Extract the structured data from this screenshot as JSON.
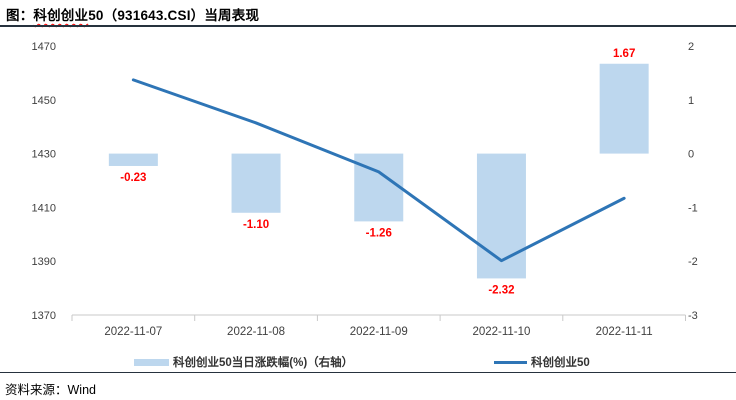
{
  "title": {
    "prefix": "图：",
    "squiggle_part": "科创创业",
    "rest": "50（931643.CSI）当周表现"
  },
  "source": {
    "label": "资料来源：Wind"
  },
  "chart_data": {
    "type": "combo",
    "title": "图：科创创业50（931643.CSI）当周表现",
    "categories": [
      "2022-11-07",
      "2022-11-08",
      "2022-11-09",
      "2022-11-10",
      "2022-11-11"
    ],
    "series": [
      {
        "name": "科创创业50当日涨跌幅(%)（右轴）",
        "type": "bar",
        "axis": "right",
        "values": [
          -0.23,
          -1.1,
          -1.26,
          -2.32,
          1.67
        ],
        "labels": [
          "-0.23",
          "-1.10",
          "-1.26",
          "-2.32",
          "1.67"
        ]
      },
      {
        "name": "科创创业50",
        "type": "line",
        "axis": "left",
        "values": [
          1457.4,
          1441.4,
          1423.2,
          1390.2,
          1413.4
        ]
      }
    ],
    "left_axis": {
      "min": 1370,
      "max": 1470,
      "ticks": [
        1470,
        1450,
        1430,
        1410,
        1390,
        1370
      ]
    },
    "right_axis": {
      "min": -3,
      "max": 2,
      "ticks": [
        2,
        1,
        0,
        -1,
        -2,
        -3
      ]
    },
    "grid": false,
    "legend_position": "bottom",
    "colors": {
      "bar_fill": "#BDD7EE",
      "line": "#2E75B6",
      "data_label": "#FF0000",
      "axis_text": "#404040",
      "axis_line": "#C9C9C9"
    }
  }
}
